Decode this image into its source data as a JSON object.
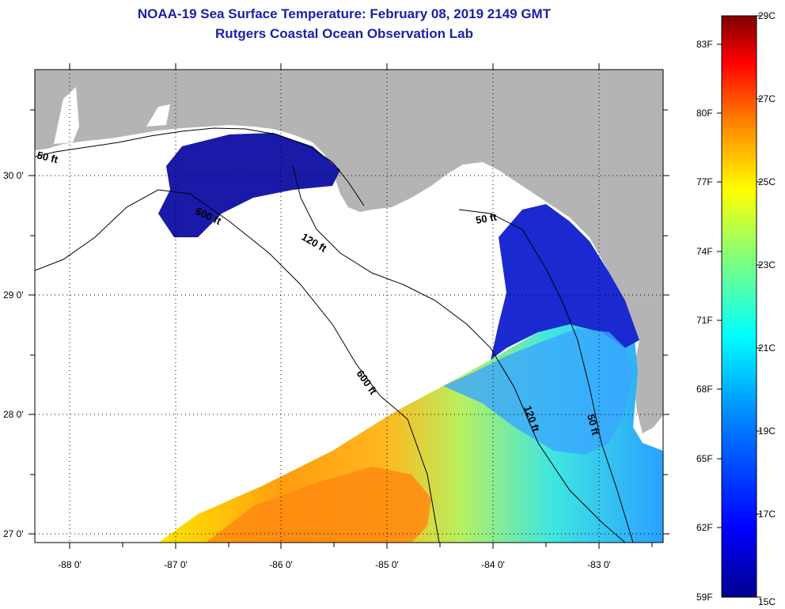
{
  "header": {
    "title": "NOAA-19 Sea Surface Temperature:  February 08, 2019 2149 GMT",
    "subtitle": "Rutgers Coastal Ocean Observation Lab"
  },
  "map": {
    "lon_ticks": [
      "-88 0'",
      "-87 0'",
      "-86 0'",
      "-85 0'",
      "-84 0'",
      "-83 0'"
    ],
    "lat_ticks": [
      "30 0'",
      "29 0'",
      "28 0'",
      "27 0'"
    ],
    "contour_labels": [
      "50 ft",
      "600 ft",
      "120 ft",
      "50 ft",
      "600 ft",
      "120 ft",
      "50 ft"
    ],
    "colors": {
      "land": "#b4b4b4",
      "cloud": "#ffffff",
      "contour": "#000000"
    }
  },
  "colorbar": {
    "fahrenheit_labels": [
      "83F",
      "80F",
      "77F",
      "74F",
      "71F",
      "68F",
      "65F",
      "62F",
      "59F"
    ],
    "celsius_labels": [
      "29C",
      "27C",
      "25C",
      "23C",
      "21C",
      "19C",
      "17C",
      "15C"
    ],
    "range_c": [
      15,
      29
    ],
    "colors": [
      "#00008f",
      "#0000ff",
      "#007fff",
      "#00ffff",
      "#7fff7f",
      "#ffff00",
      "#ff7f00",
      "#ff0000",
      "#7f0000"
    ]
  }
}
